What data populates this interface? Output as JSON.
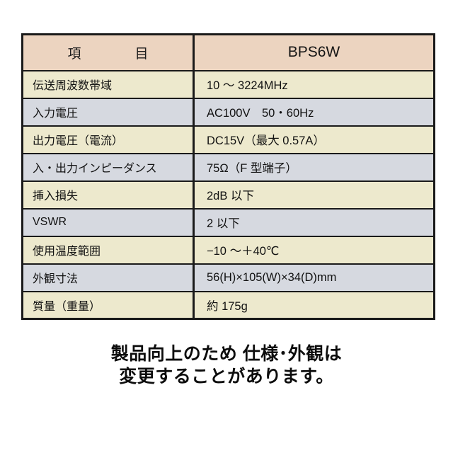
{
  "table": {
    "header": {
      "item_label": "項　　　　目",
      "model": "BPS6W"
    },
    "rows": [
      {
        "label": "伝送周波数帯域",
        "value": "10 〜 3224MHz"
      },
      {
        "label": "入力電圧",
        "value": "AC100V　50・60Hz"
      },
      {
        "label": "出力電圧（電流）",
        "value": "DC15V（最大 0.57A）"
      },
      {
        "label": "入・出力インピーダンス",
        "value": "75Ω（F 型端子）"
      },
      {
        "label": "挿入損失",
        "value": "2dB 以下"
      },
      {
        "label": "VSWR",
        "value": "2 以下"
      },
      {
        "label": "使用温度範囲",
        "value": "−10 〜＋40℃"
      },
      {
        "label": "外観寸法",
        "value": "56(H)×105(W)×34(D)mm"
      },
      {
        "label": "質量（重量）",
        "value": "約 175g"
      }
    ]
  },
  "footer": {
    "line1": "製品向上のため 仕様･外観は",
    "line2": "変更することがあります。"
  },
  "colors": {
    "header_bg": "#ecd4c0",
    "row_cream": "#ede9cd",
    "row_gray": "#d6d9e0",
    "border": "#1a1a1a"
  }
}
